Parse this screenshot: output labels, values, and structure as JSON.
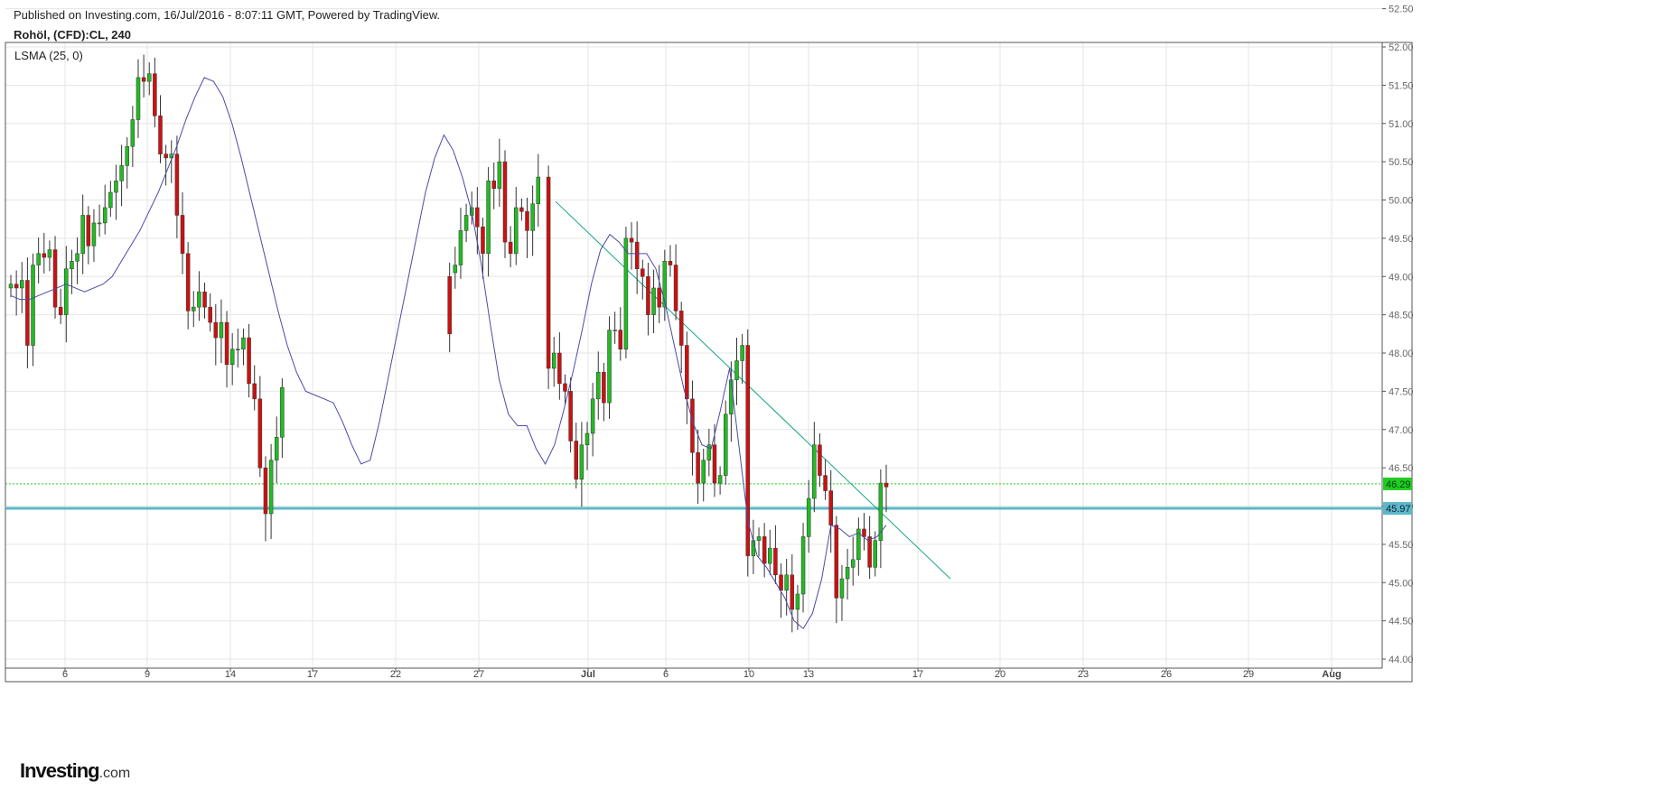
{
  "header": {
    "published": "Published on Investing.com, 16/Jul/2016 - 8:07:11 GMT, Powered by TradingView.",
    "symbol": "Rohöl, (CFD):CL, 240"
  },
  "indicator_label": "LSMA (25, 0)",
  "logo": {
    "main": "Investing",
    "suffix": ".com"
  },
  "colors": {
    "up": "#22bb22",
    "down": "#cc1111",
    "wick": "#333333",
    "lsma": "#4a4aa8",
    "trendline": "#17a589",
    "support": "#5bb8c9",
    "last_price": "#22cc22"
  },
  "chart_data": {
    "type": "candlestick",
    "title": "Rohöl, (CFD):CL, 240",
    "y_axis": {
      "min": 44.0,
      "max": 52.5,
      "ticks": [
        "44.00",
        "44.50",
        "45.00",
        "45.50",
        "46.00",
        "46.50",
        "47.00",
        "47.50",
        "48.00",
        "48.50",
        "49.00",
        "49.50",
        "50.00",
        "50.50",
        "51.00",
        "51.50",
        "52.00",
        "52.50"
      ]
    },
    "x_axis": {
      "ticks": [
        {
          "label": "6",
          "bold": false
        },
        {
          "label": "9",
          "bold": false
        },
        {
          "label": "14",
          "bold": false
        },
        {
          "label": "17",
          "bold": false
        },
        {
          "label": "22",
          "bold": false
        },
        {
          "label": "27",
          "bold": false
        },
        {
          "label": "Jul",
          "bold": true
        },
        {
          "label": "6",
          "bold": false
        },
        {
          "label": "10",
          "bold": false
        },
        {
          "label": "13",
          "bold": false
        },
        {
          "label": "17",
          "bold": false
        },
        {
          "label": "20",
          "bold": false
        },
        {
          "label": "23",
          "bold": false
        },
        {
          "label": "26",
          "bold": false
        },
        {
          "label": "29",
          "bold": false
        },
        {
          "label": "Aug",
          "bold": true
        }
      ]
    },
    "price_labels": [
      {
        "value": "46.29",
        "kind": "last_price"
      },
      {
        "value": "45.97",
        "kind": "support"
      }
    ],
    "horizontal_lines": [
      {
        "name": "support",
        "value": 45.97
      },
      {
        "name": "last_price",
        "value": 46.29
      }
    ],
    "trendline": {
      "from": [
        49.98,
        0
      ],
      "to": [
        45.05,
        1
      ]
    },
    "series": [
      {
        "name": "CL",
        "kind": "candles",
        "closes": [
          48.9,
          48.85,
          48.95,
          48.1,
          49.15,
          49.3,
          49.25,
          49.35,
          48.6,
          48.5,
          49.1,
          49.2,
          49.3,
          49.8,
          49.4,
          49.7,
          49.7,
          49.9,
          50.1,
          50.25,
          50.45,
          50.7,
          51.05,
          51.6,
          51.55,
          51.65,
          51.1,
          50.6,
          50.55,
          50.6,
          49.8,
          49.3,
          48.55,
          48.6,
          48.8,
          48.6,
          48.4,
          48.2,
          48.4,
          47.85,
          48.05,
          48.05,
          48.2,
          47.6,
          47.4,
          46.5,
          45.9,
          46.6,
          46.9,
          47.55,
          48.25,
          49.15,
          49.6,
          49.8,
          49.9,
          49.65,
          49.3,
          50.25,
          50.15,
          50.5,
          49.45,
          49.3,
          49.9,
          49.85,
          49.6,
          49.95,
          50.3,
          47.8,
          48.0,
          47.6,
          47.5,
          46.85,
          46.35,
          46.8,
          46.95,
          47.4,
          47.75,
          47.35,
          48.3,
          48.3,
          48.05,
          49.5,
          49.45,
          49.1,
          49.0,
          48.5,
          48.85,
          48.6,
          49.2,
          49.15,
          48.55,
          48.1,
          47.4,
          46.7,
          46.3,
          46.6,
          46.8,
          46.3,
          46.4,
          47.2,
          47.65,
          47.9,
          48.1,
          45.35,
          45.55,
          45.6,
          45.25,
          45.45,
          45.1,
          44.9,
          45.1,
          44.65,
          44.85,
          45.6,
          46.1,
          46.8,
          46.4,
          46.2,
          45.75,
          44.8,
          45.05,
          45.2,
          45.3,
          45.7,
          45.6,
          45.2,
          45.55,
          46.3,
          46.25
        ],
        "opens": [
          48.85,
          48.9,
          48.85,
          48.95,
          48.1,
          49.15,
          49.3,
          49.25,
          49.35,
          48.6,
          48.5,
          49.1,
          49.2,
          49.3,
          49.8,
          49.4,
          49.7,
          49.7,
          49.9,
          50.1,
          50.25,
          50.45,
          50.7,
          51.05,
          51.6,
          51.55,
          51.65,
          51.1,
          50.6,
          50.55,
          50.6,
          49.8,
          49.3,
          48.55,
          48.6,
          48.8,
          48.6,
          48.4,
          48.2,
          48.4,
          47.85,
          48.05,
          48.05,
          48.2,
          47.6,
          47.4,
          46.5,
          45.9,
          46.6,
          46.9,
          49.0,
          49.05,
          49.15,
          49.6,
          49.8,
          49.9,
          49.65,
          49.3,
          50.25,
          50.15,
          50.5,
          49.45,
          49.3,
          49.9,
          49.85,
          49.6,
          49.95,
          50.3,
          47.8,
          48.0,
          47.6,
          47.5,
          46.85,
          46.35,
          46.8,
          46.95,
          47.4,
          47.75,
          47.35,
          48.3,
          48.3,
          48.05,
          49.5,
          49.45,
          49.1,
          49.0,
          48.5,
          48.85,
          48.6,
          49.2,
          49.15,
          48.55,
          48.1,
          47.4,
          46.7,
          46.3,
          46.6,
          46.8,
          46.3,
          46.4,
          47.2,
          47.65,
          47.9,
          48.1,
          45.35,
          45.55,
          45.6,
          45.25,
          45.45,
          45.1,
          44.9,
          45.1,
          44.65,
          44.85,
          45.6,
          46.1,
          46.8,
          46.4,
          46.2,
          45.75,
          44.8,
          45.05,
          45.2,
          45.3,
          45.7,
          45.6,
          45.2,
          45.55,
          46.3
        ]
      },
      {
        "name": "LSMA (25, 0)",
        "kind": "line",
        "values": [
          48.75,
          48.7,
          48.7,
          48.75,
          48.8,
          48.85,
          48.9,
          48.85,
          48.8,
          48.85,
          48.9,
          49.0,
          49.2,
          49.4,
          49.6,
          49.85,
          50.1,
          50.4,
          50.7,
          51.05,
          51.35,
          51.6,
          51.55,
          51.35,
          51.0,
          50.55,
          50.05,
          49.55,
          49.05,
          48.55,
          48.1,
          47.75,
          47.5,
          47.45,
          47.4,
          47.35,
          47.1,
          46.8,
          46.55,
          46.6,
          47.1,
          47.7,
          48.3,
          48.9,
          49.5,
          50.1,
          50.55,
          50.85,
          50.65,
          50.3,
          49.85,
          49.2,
          48.4,
          47.65,
          47.2,
          47.05,
          47.05,
          46.75,
          46.55,
          46.8,
          47.25,
          47.75,
          48.3,
          48.9,
          49.35,
          49.55,
          49.45,
          49.3,
          49.3,
          49.3,
          49.1,
          48.65,
          48.1,
          47.55,
          47.1,
          46.8,
          46.75,
          47.25,
          47.8,
          46.8,
          45.8,
          45.35,
          45.2,
          45.0,
          44.8,
          44.5,
          44.4,
          44.6,
          45.05,
          45.75,
          45.7,
          45.6,
          45.65,
          45.55,
          45.6,
          45.75
        ]
      }
    ]
  }
}
